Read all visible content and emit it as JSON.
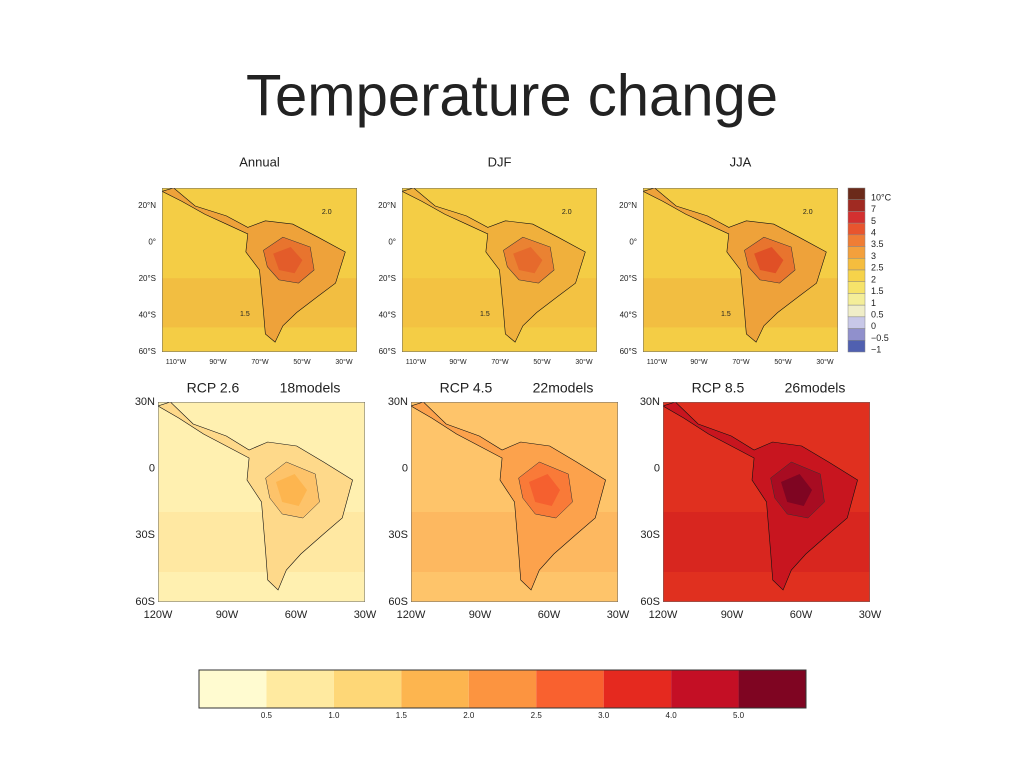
{
  "title": "Temperature change",
  "top_panels": {
    "titles": [
      "Annual",
      "DJF",
      "JJA"
    ],
    "lat_labels": [
      "20°N",
      "0°",
      "20°S",
      "40°S",
      "60°S"
    ],
    "lon_labels": [
      "110°W",
      "90°W",
      "70°W",
      "50°W",
      "30°W"
    ],
    "contour_labels": [
      "2.0",
      "1.5"
    ],
    "colorbar": {
      "labels": [
        "10°C",
        "7",
        "5",
        "4",
        "3.5",
        "3",
        "2.5",
        "2",
        "1.5",
        "1",
        "0.5",
        "0",
        "−0.5",
        "−1"
      ],
      "colors": [
        "#6b2a1a",
        "#a02a22",
        "#d33030",
        "#e8552e",
        "#ef7d35",
        "#f3a03c",
        "#f5bd3e",
        "#f6d34a",
        "#f6e36a",
        "#f4ee99",
        "#f0eec8",
        "#c8c8e8",
        "#9090cc",
        "#5060b0"
      ]
    }
  },
  "bottom_panels": {
    "scenarios": [
      {
        "name": "RCP 2.6",
        "models": "18models"
      },
      {
        "name": "RCP 4.5",
        "models": "22models"
      },
      {
        "name": "RCP 8.5",
        "models": "26models"
      }
    ],
    "lat_labels": [
      "30N",
      "0",
      "30S",
      "60S"
    ],
    "lon_labels": [
      "120W",
      "90W",
      "60W",
      "30W"
    ],
    "colorbar": {
      "labels": [
        "0.5",
        "1.0",
        "1.5",
        "2.0",
        "2.5",
        "3.0",
        "4.0",
        "5.0"
      ],
      "colors": [
        "#fffbd0",
        "#ffeaa0",
        "#fed777",
        "#fdb54f",
        "#fc9440",
        "#f9612f",
        "#e5291f",
        "#c40f25",
        "#7f0522"
      ]
    }
  }
}
